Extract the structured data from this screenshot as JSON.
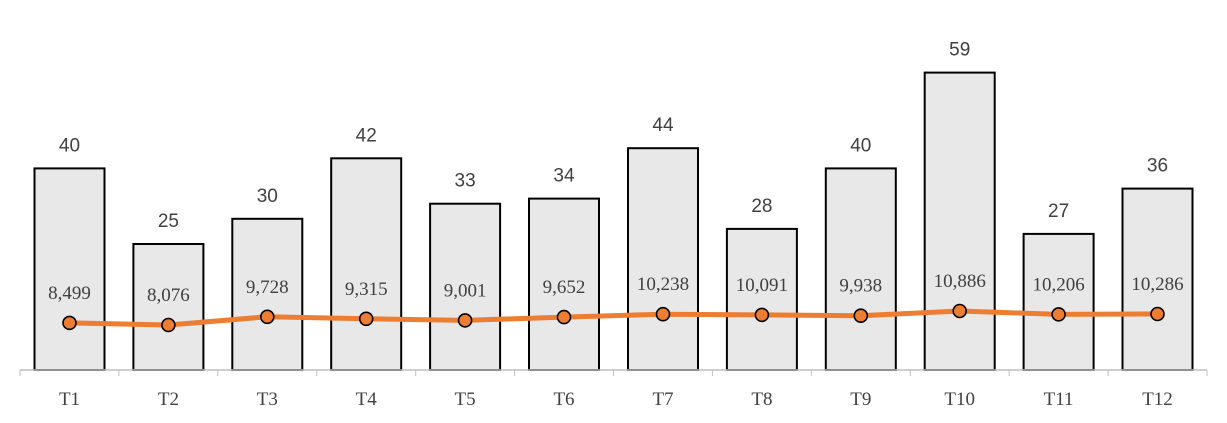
{
  "chart_data": {
    "type": "bar",
    "title": "",
    "xlabel": "",
    "ylabel": "",
    "categories": [
      "T1",
      "T2",
      "T3",
      "T4",
      "T5",
      "T6",
      "T7",
      "T8",
      "T9",
      "T10",
      "T11",
      "T12"
    ],
    "series": [
      {
        "type": "bar",
        "values": [
          40,
          25,
          30,
          42,
          33,
          34,
          44,
          28,
          40,
          59,
          27,
          36
        ],
        "labels": [
          "40",
          "25",
          "30",
          "42",
          "33",
          "34",
          "44",
          "28",
          "40",
          "59",
          "27",
          "36"
        ],
        "color": "#e8e8e8"
      },
      {
        "type": "line",
        "values": [
          8499,
          8076,
          9728,
          9315,
          9001,
          9652,
          10238,
          10091,
          9938,
          10886,
          10206,
          10286
        ],
        "labels": [
          "8,499",
          "8,076",
          "9,728",
          "9,315",
          "9,001",
          "9,652",
          "10,238",
          "10,091",
          "9,938",
          "10,886",
          "10,206",
          "10,286"
        ],
        "color": "#ed7d31"
      }
    ],
    "grid": false,
    "legend": "none"
  }
}
